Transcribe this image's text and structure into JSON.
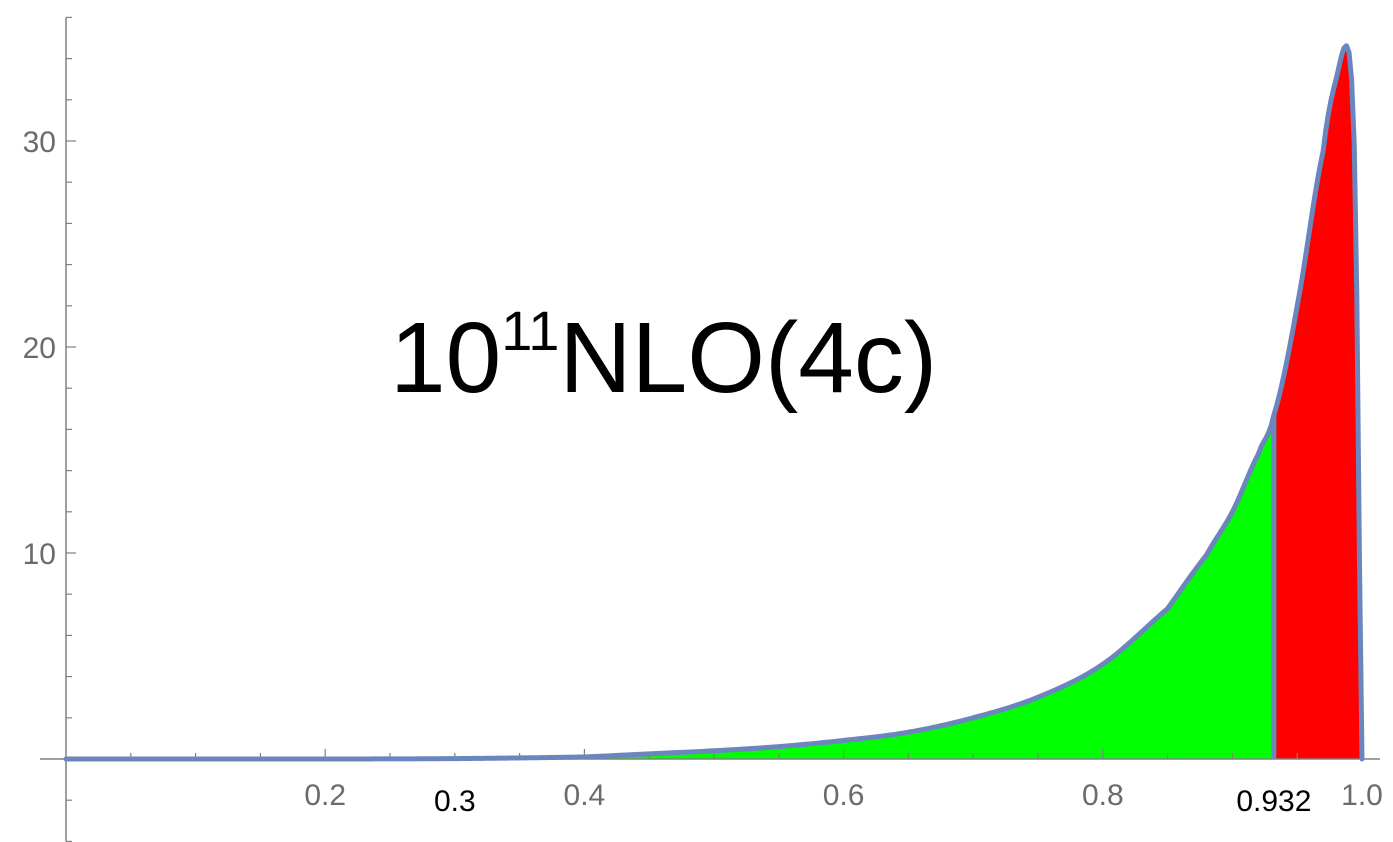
{
  "chart_data": {
    "type": "area",
    "title_base": "10",
    "title_exponent": "11",
    "title_rest": "NLO(4c)",
    "xlabel": "",
    "ylabel": "",
    "xlim": [
      0.0,
      1.0
    ],
    "ylim": [
      -4,
      36
    ],
    "x_ticks": [
      {
        "value": 0.2,
        "label": "0.2"
      },
      {
        "value": 0.4,
        "label": "0.4"
      },
      {
        "value": 0.6,
        "label": "0.6"
      },
      {
        "value": 0.8,
        "label": "0.8"
      },
      {
        "value": 1.0,
        "label": "1.0"
      }
    ],
    "y_ticks": [
      {
        "value": 10,
        "label": "10"
      },
      {
        "value": 20,
        "label": "20"
      },
      {
        "value": 30,
        "label": "30"
      }
    ],
    "markers": [
      {
        "value": 0.3,
        "label": "0.3"
      },
      {
        "value": 0.932,
        "label": "0.932"
      }
    ],
    "series": [
      {
        "x": [
          0.0,
          0.1,
          0.2,
          0.3,
          0.4,
          0.45,
          0.5,
          0.55,
          0.6,
          0.65,
          0.7,
          0.75,
          0.8,
          0.85,
          0.88,
          0.9,
          0.92,
          0.932,
          0.95,
          0.97,
          0.98,
          0.99,
          0.995,
          1.0
        ],
        "y": [
          0.0,
          0.0,
          0.0,
          0.02,
          0.1,
          0.25,
          0.4,
          0.6,
          0.9,
          1.3,
          2.0,
          3.0,
          4.6,
          7.3,
          9.9,
          12.0,
          14.8,
          16.7,
          22.0,
          29.5,
          33.0,
          34.3,
          27.0,
          0.0
        ]
      }
    ],
    "regions": [
      {
        "from": 0.3,
        "to": 0.932,
        "color": "#00ff00"
      },
      {
        "from": 0.932,
        "to": 1.0,
        "color": "#ff0000"
      }
    ],
    "curve_color": "#6a86bd",
    "axis_color": "#808080",
    "grid": false
  }
}
